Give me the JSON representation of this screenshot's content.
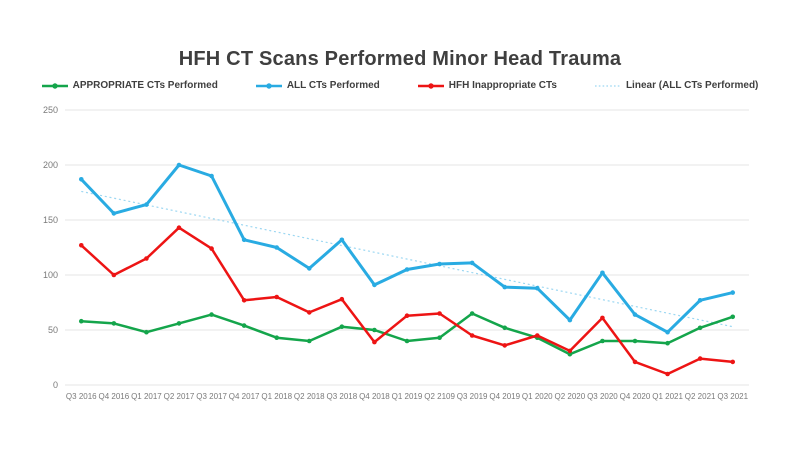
{
  "title": "HFH CT Scans Performed Minor Head Trauma",
  "legend": {
    "items": [
      {
        "label": "APPROPRIATE CTs Performed",
        "color": "#14A54B",
        "marker": "line-dot"
      },
      {
        "label": "ALL CTs Performed",
        "color": "#29ABE2",
        "marker": "line-dot"
      },
      {
        "label": "HFH Inappropriate CTs",
        "color": "#ED1414",
        "marker": "line-dot"
      },
      {
        "label": "Linear (ALL CTs Performed)",
        "color": "#9CD7F2",
        "marker": "dotted-line"
      }
    ]
  },
  "chart_data": {
    "type": "line",
    "title": "HFH CT Scans Performed Minor Head Trauma",
    "title_color": "#3F3F3F",
    "xlabel": "",
    "ylabel": "",
    "ylim": [
      0,
      250
    ],
    "yticks": [
      0,
      50,
      100,
      150,
      200,
      250
    ],
    "grid": true,
    "grid_color": "#E4E4E4",
    "axis_text_color": "#7A7A7A",
    "legend_position": "top",
    "categories": [
      "Q3 2016",
      "Q4 2016",
      "Q1 2017",
      "Q2 2017",
      "Q3 2017",
      "Q4 2017",
      "Q1 2018",
      "Q2 2018",
      "Q3 2018",
      "Q4 2018",
      "Q1 2019",
      "Q2 2109",
      "Q3 2019",
      "Q4 2019",
      "Q1 2020",
      "Q2 2020",
      "Q3 2020",
      "Q4 2020",
      "Q1 2021",
      "Q2 2021",
      "Q3 2021"
    ],
    "series": [
      {
        "name": "APPROPRIATE CTs Performed",
        "color": "#14A54B",
        "line_width": 2.5,
        "values": [
          58,
          56,
          48,
          56,
          64,
          54,
          43,
          40,
          53,
          50,
          40,
          43,
          65,
          52,
          43,
          28,
          40,
          40,
          38,
          52,
          62
        ]
      },
      {
        "name": "ALL CTs Performed",
        "color": "#29ABE2",
        "line_width": 3,
        "values": [
          187,
          156,
          164,
          200,
          190,
          132,
          125,
          106,
          132,
          91,
          105,
          110,
          111,
          89,
          88,
          59,
          102,
          64,
          48,
          77,
          84
        ]
      },
      {
        "name": "HFH Inappropriate CTs",
        "color": "#ED1414",
        "line_width": 2.5,
        "values": [
          127,
          100,
          115,
          143,
          124,
          77,
          80,
          66,
          78,
          39,
          63,
          65,
          45,
          36,
          45,
          31,
          61,
          21,
          10,
          24,
          21
        ]
      }
    ],
    "trendline": {
      "name": "Linear (ALL CTs Performed)",
      "of_series": "ALL CTs Performed",
      "style": "dotted",
      "color": "#9CD7F2",
      "start_value": 176,
      "end_value": 53
    }
  }
}
